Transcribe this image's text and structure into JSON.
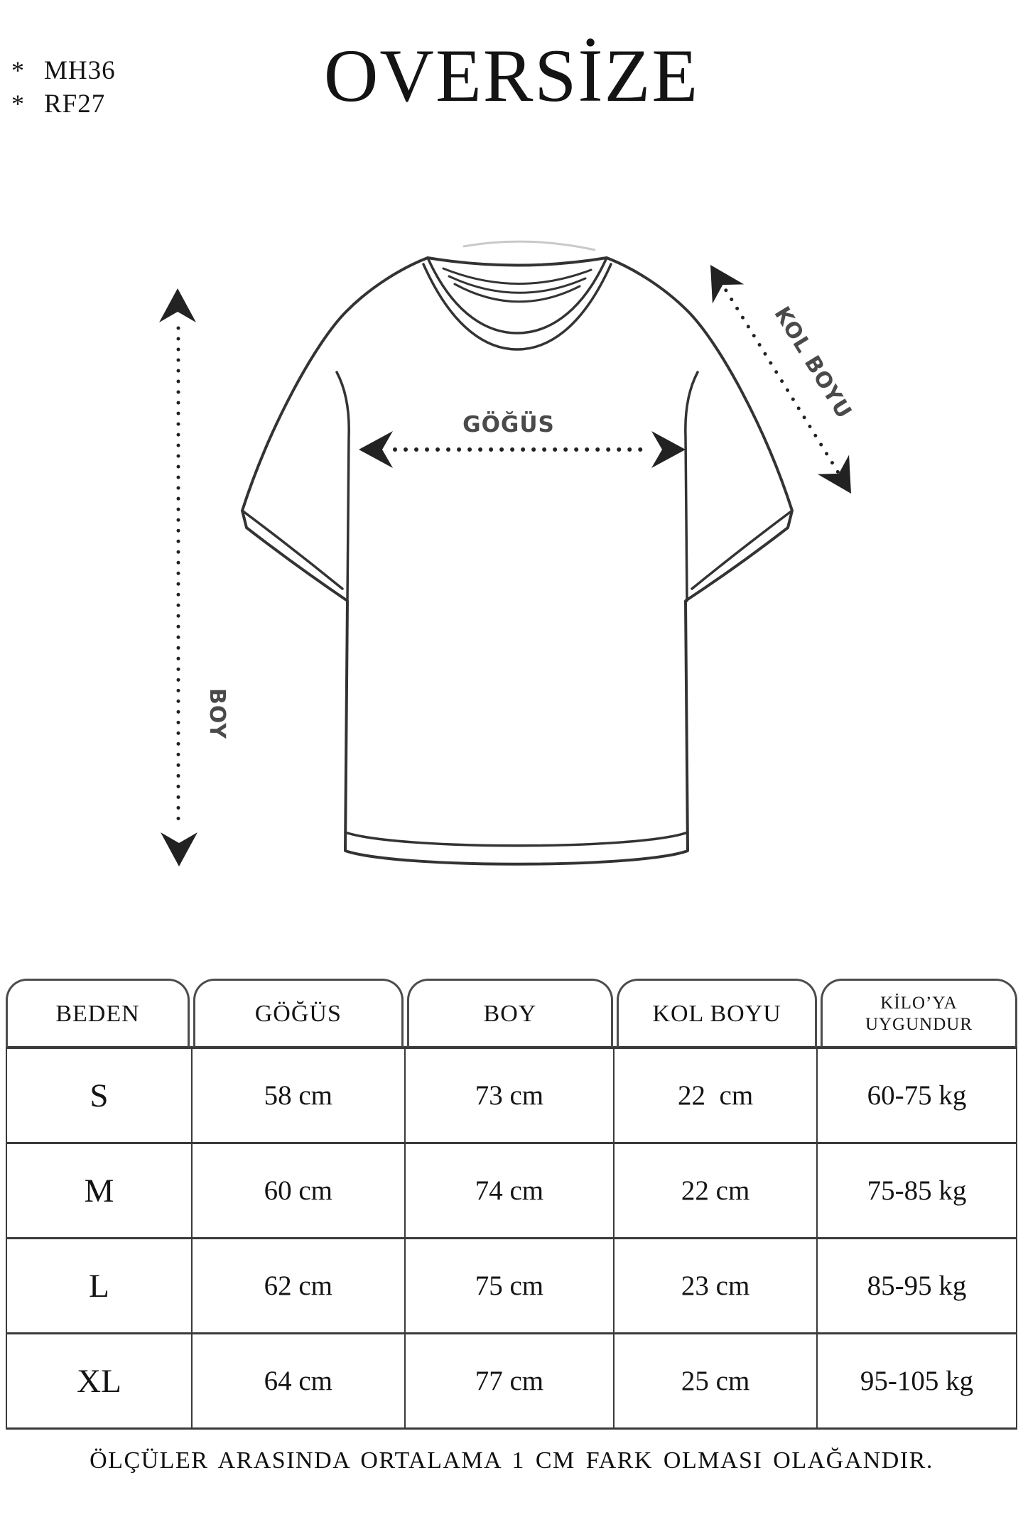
{
  "title": "OVERSİZE",
  "product_codes": {
    "bullet": "*",
    "items": [
      "MH36",
      "RF27"
    ]
  },
  "diagram": {
    "chest_label": "GÖĞÜS",
    "length_label": "BOY",
    "sleeve_label": "KOL BOYU"
  },
  "size_table": {
    "headers": [
      "BEDEN",
      "GÖĞÜS",
      "BOY",
      "KOL BOYU",
      "KİLO’YA UYGUNDUR"
    ],
    "rows": [
      [
        "S",
        "58 cm",
        "73 cm",
        "22  cm",
        "60-75 kg"
      ],
      [
        "M",
        "60 cm",
        "74 cm",
        "22 cm",
        "75-85 kg"
      ],
      [
        "L",
        "62 cm",
        "75 cm",
        "23 cm",
        "85-95 kg"
      ],
      [
        "XL",
        "64 cm",
        "77 cm",
        "25 cm",
        "95-105 kg"
      ]
    ]
  },
  "footer_note": "ÖLÇÜLER ARASINDA ORTALAMA 1 CM FARK OLMASI OLAĞANDIR.",
  "colors": {
    "ink": "#1a1a1a",
    "line": "#333333",
    "label_gray": "#4a4a4a"
  }
}
